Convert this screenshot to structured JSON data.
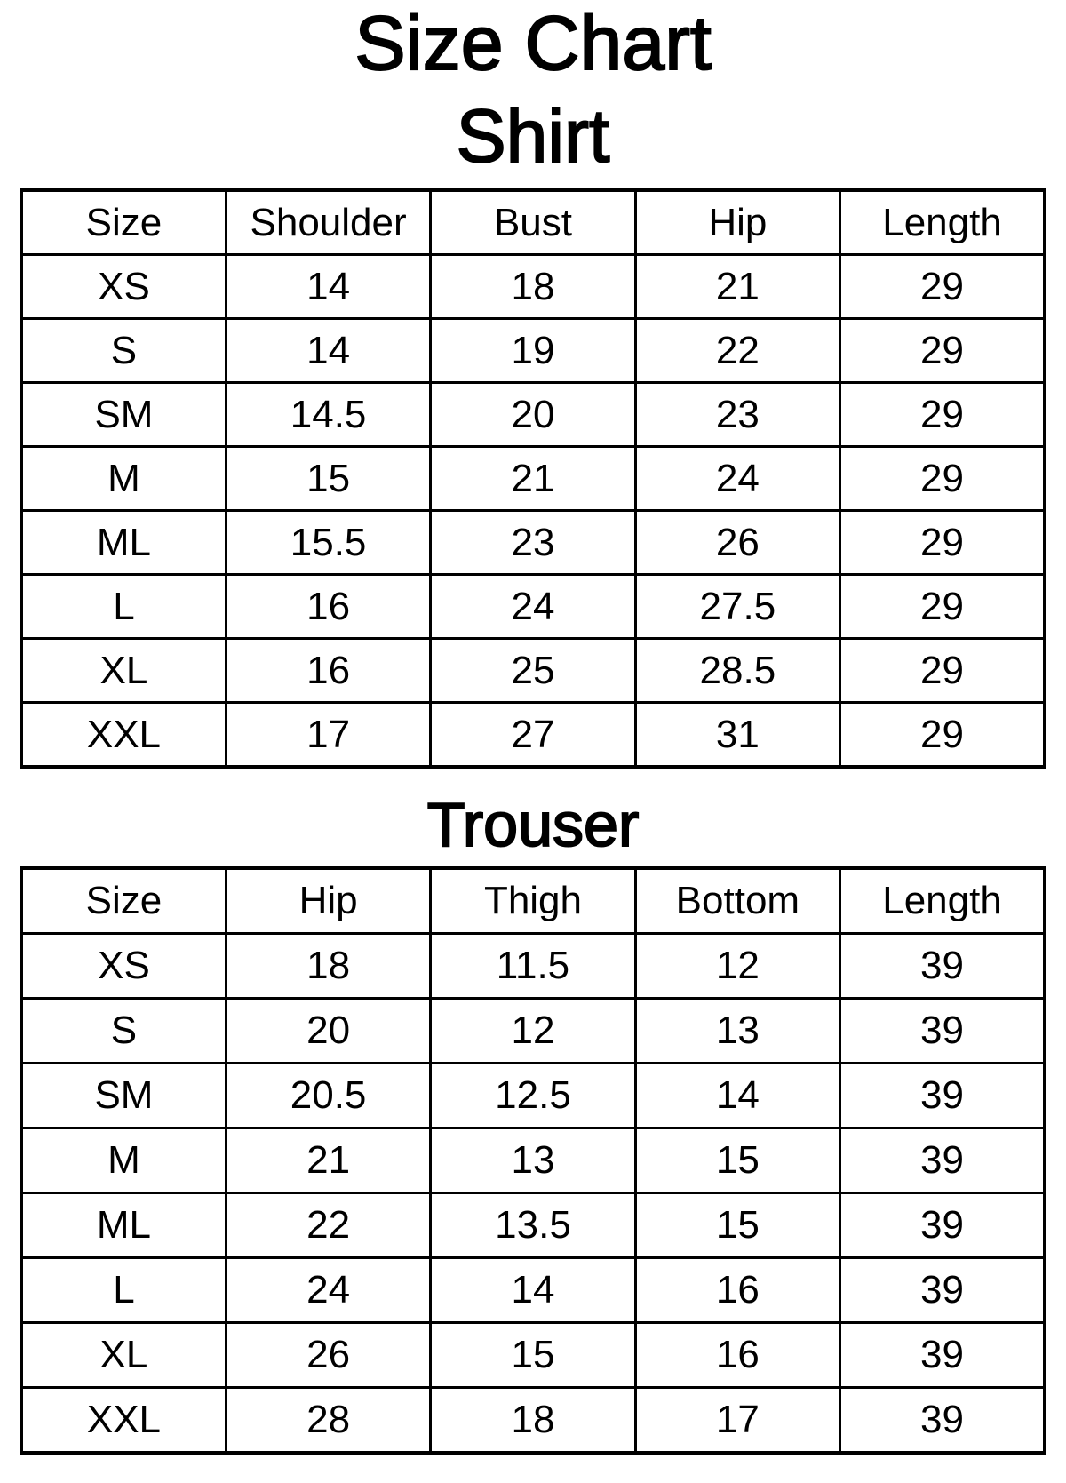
{
  "page": {
    "title": "Size Chart"
  },
  "sections": [
    {
      "title": "Shirt",
      "columns": [
        "Size",
        "Shoulder",
        "Bust",
        "Hip",
        "Length"
      ],
      "rows": [
        [
          "XS",
          "14",
          "18",
          "21",
          "29"
        ],
        [
          "S",
          "14",
          "19",
          "22",
          "29"
        ],
        [
          "SM",
          "14.5",
          "20",
          "23",
          "29"
        ],
        [
          "M",
          "15",
          "21",
          "24",
          "29"
        ],
        [
          "ML",
          "15.5",
          "23",
          "26",
          "29"
        ],
        [
          "L",
          "16",
          "24",
          "27.5",
          "29"
        ],
        [
          "XL",
          "16",
          "25",
          "28.5",
          "29"
        ],
        [
          "XXL",
          "17",
          "27",
          "31",
          "29"
        ]
      ]
    },
    {
      "title": "Trouser",
      "columns": [
        "Size",
        "Hip",
        "Thigh",
        "Bottom",
        "Length"
      ],
      "rows": [
        [
          "XS",
          "18",
          "11.5",
          "12",
          "39"
        ],
        [
          "S",
          "20",
          "12",
          "13",
          "39"
        ],
        [
          "SM",
          "20.5",
          "12.5",
          "14",
          "39"
        ],
        [
          "M",
          "21",
          "13",
          "15",
          "39"
        ],
        [
          "ML",
          "22",
          "13.5",
          "15",
          "39"
        ],
        [
          "L",
          "24",
          "14",
          "16",
          "39"
        ],
        [
          "XL",
          "26",
          "15",
          "16",
          "39"
        ],
        [
          "XXL",
          "28",
          "18",
          "17",
          "39"
        ]
      ]
    }
  ]
}
